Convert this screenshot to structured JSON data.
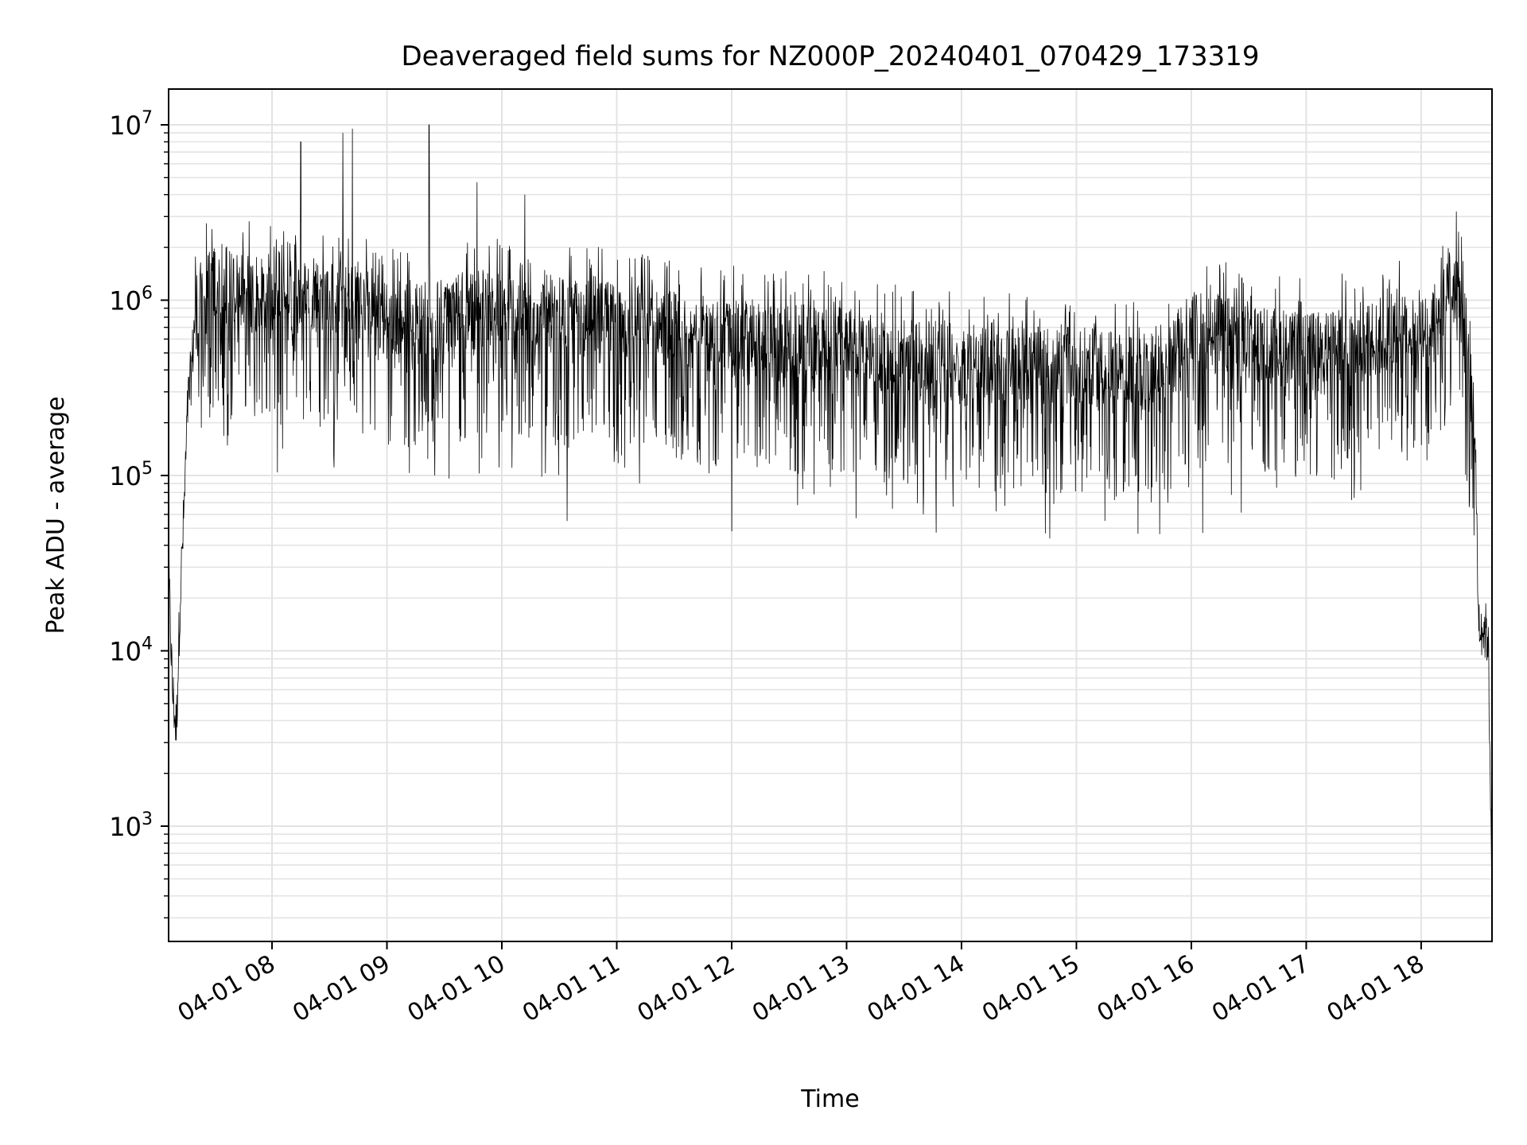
{
  "chart_data": {
    "type": "line",
    "title": "Deaveraged field sums for NZ000P_20240401_070429_173319",
    "xlabel": "Time",
    "ylabel": "Peak ADU - average",
    "yscale": "log",
    "ylim": [
      220,
      16000000
    ],
    "xlim": [
      "2024-04-01 07:06",
      "2024-04-01 18:37"
    ],
    "grid": true,
    "grid_minor": true,
    "x_ticks": [
      {
        "t": "2024-04-01 08:00",
        "label": "04-01 08"
      },
      {
        "t": "2024-04-01 09:00",
        "label": "04-01 09"
      },
      {
        "t": "2024-04-01 10:00",
        "label": "04-01 10"
      },
      {
        "t": "2024-04-01 11:00",
        "label": "04-01 11"
      },
      {
        "t": "2024-04-01 12:00",
        "label": "04-01 12"
      },
      {
        "t": "2024-04-01 13:00",
        "label": "04-01 13"
      },
      {
        "t": "2024-04-01 14:00",
        "label": "04-01 14"
      },
      {
        "t": "2024-04-01 15:00",
        "label": "04-01 15"
      },
      {
        "t": "2024-04-01 16:00",
        "label": "04-01 16"
      },
      {
        "t": "2024-04-01 17:00",
        "label": "04-01 17"
      },
      {
        "t": "2024-04-01 18:00",
        "label": "04-01 18"
      }
    ],
    "y_ticks": [
      {
        "v": 1000,
        "base": "10",
        "exp": "3"
      },
      {
        "v": 10000,
        "base": "10",
        "exp": "4"
      },
      {
        "v": 100000,
        "base": "10",
        "exp": "5"
      },
      {
        "v": 1000000,
        "base": "10",
        "exp": "6"
      },
      {
        "v": 10000000,
        "base": "10",
        "exp": "7"
      }
    ],
    "series": [
      {
        "color": "#000000",
        "points": [
          [
            "2024-04-01 07:06",
            30000
          ],
          [
            "2024-04-01 07:08",
            6000
          ],
          [
            "2024-04-01 07:10",
            3500
          ],
          [
            "2024-04-01 07:12",
            20000
          ],
          [
            "2024-04-01 07:14",
            60000
          ],
          [
            "2024-04-01 07:16",
            250000
          ],
          [
            "2024-04-01 07:18",
            400000
          ],
          [
            "2024-04-01 07:20",
            900000
          ],
          [
            "2024-04-01 07:30",
            1300000
          ],
          [
            "2024-04-01 08:00",
            1000000
          ],
          [
            "2024-04-01 08:30",
            1100000
          ],
          [
            "2024-04-01 09:00",
            800000
          ],
          [
            "2024-04-01 10:00",
            900000
          ],
          [
            "2024-04-01 11:00",
            750000
          ],
          [
            "2024-04-01 12:00",
            600000
          ],
          [
            "2024-04-01 13:00",
            550000
          ],
          [
            "2024-04-01 14:00",
            420000
          ],
          [
            "2024-04-01 15:00",
            420000
          ],
          [
            "2024-04-01 15:45",
            380000
          ],
          [
            "2024-04-01 16:00",
            700000
          ],
          [
            "2024-04-01 17:00",
            500000
          ],
          [
            "2024-04-01 18:00",
            700000
          ],
          [
            "2024-04-01 18:20",
            1300000
          ],
          [
            "2024-04-01 18:28",
            200000
          ],
          [
            "2024-04-01 18:30",
            15000
          ],
          [
            "2024-04-01 18:35",
            12000
          ],
          [
            "2024-04-01 18:37",
            450
          ]
        ],
        "spikes": [
          [
            "2024-04-01 08:15",
            8000000
          ],
          [
            "2024-04-01 08:37",
            9000000
          ],
          [
            "2024-04-01 08:42",
            9500000
          ],
          [
            "2024-04-01 09:22",
            10000000
          ],
          [
            "2024-04-01 09:47",
            4700000
          ],
          [
            "2024-04-01 10:12",
            4000000
          ]
        ],
        "dips": [
          [
            "2024-04-01 10:34",
            55000
          ],
          [
            "2024-04-01 12:00",
            48000
          ],
          [
            "2024-04-01 13:40",
            60000
          ],
          [
            "2024-04-01 16:06",
            47000
          ]
        ]
      }
    ]
  }
}
